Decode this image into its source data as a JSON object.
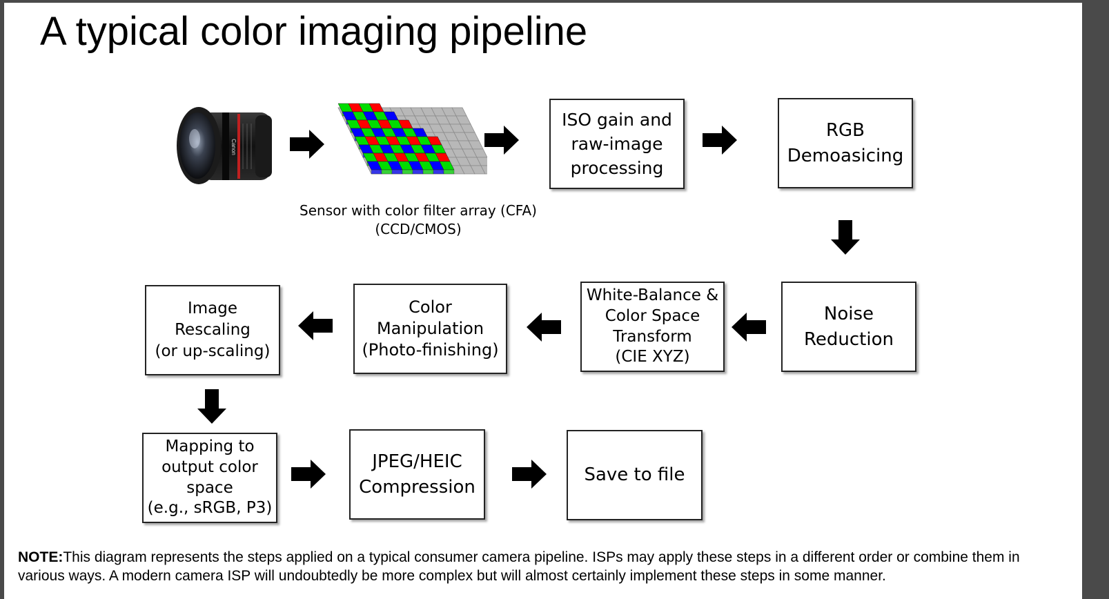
{
  "title": "A typical color imaging pipeline",
  "sensor_caption": {
    "line1": "Sensor with color filter array  (CFA)",
    "line2": "(CCD/CMOS)"
  },
  "lens": {
    "brand_text": "Canon"
  },
  "boxes": {
    "iso_gain": [
      "ISO gain and",
      "raw-image",
      "processing"
    ],
    "demosaicing": [
      "RGB",
      "Demoasicing"
    ],
    "noise_reduction": [
      "Noise",
      "Reduction"
    ],
    "white_balance": [
      "White-Balance &",
      "Color Space",
      "Transform",
      "(CIE XYZ)"
    ],
    "color_manipulation": [
      "Color",
      "Manipulation",
      "(Photo-finishing)"
    ],
    "image_rescaling": [
      "Image Rescaling",
      "(or up-scaling)"
    ],
    "mapping_output": [
      "Mapping to",
      "output color",
      "space",
      "(e.g., sRGB, P3)"
    ],
    "jpeg_compression": [
      "JPEG/HEIC",
      "Compression"
    ],
    "save_to_file": [
      "Save to file"
    ]
  },
  "note": {
    "label": "NOTE:",
    "text": "This diagram represents the steps applied on a typical consumer camera pipeline.  ISPs may apply these steps in a different order or combine them in various ways. A modern camera ISP will undoubtedly be more complex but will almost certainly implement these steps in some manner."
  },
  "colors": {
    "cfa_red": "#ff0000",
    "cfa_green": "#00dd00",
    "cfa_blue": "#0000ff",
    "cfa_gray": "#b8b8b8",
    "arrow": "#000000"
  },
  "icons": {
    "camera_lens": "camera-lens-icon",
    "cfa_sensor": "cfa-sensor-icon",
    "arrow_right": "arrow-right-icon",
    "arrow_left": "arrow-left-icon",
    "arrow_down": "arrow-down-icon"
  }
}
